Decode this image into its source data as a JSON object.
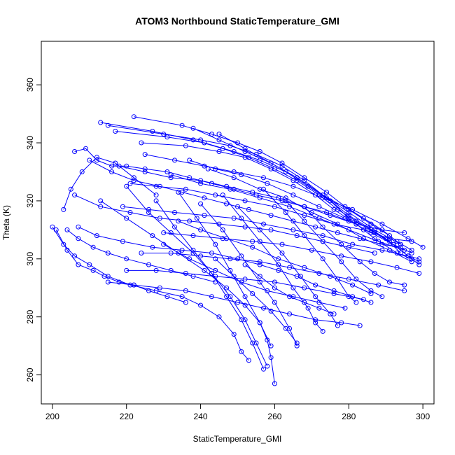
{
  "chart_data": {
    "type": "scatter",
    "mode": "lines+markers",
    "title": "ATOM3 Northbound StaticTemperature_GMI",
    "xlabel": "StaticTemperature_GMI",
    "ylabel": "Theta (K)",
    "xlim": [
      197,
      303
    ],
    "ylim": [
      250,
      375
    ],
    "xticks": [
      200,
      220,
      240,
      260,
      280,
      300
    ],
    "yticks": [
      260,
      280,
      300,
      320,
      340,
      360
    ],
    "grid": false,
    "color": "#0000ff",
    "series": [
      {
        "x": [
          222,
          235,
          243,
          250,
          256,
          262,
          268,
          274,
          279,
          284,
          289,
          293,
          297
        ],
        "y": [
          349,
          346,
          343,
          340,
          337,
          333,
          328,
          323,
          318,
          314,
          310,
          306,
          303
        ]
      },
      {
        "x": [
          213,
          227,
          238,
          246,
          253,
          260,
          266,
          272,
          277,
          282,
          287,
          292,
          296,
          299
        ],
        "y": [
          347,
          344,
          341,
          338,
          335,
          331,
          327,
          322,
          317,
          313,
          309,
          305,
          301,
          299
        ]
      },
      {
        "x": [
          215,
          230,
          240,
          248,
          255,
          262,
          268,
          274,
          280,
          285,
          290,
          294
        ],
        "y": [
          346,
          343,
          341,
          339,
          336,
          332,
          327,
          321,
          315,
          311,
          307,
          302
        ]
      },
      {
        "x": [
          217,
          231,
          241,
          249,
          256,
          263,
          269,
          275,
          280,
          286,
          291,
          296,
          299
        ],
        "y": [
          344,
          342,
          340,
          337,
          334,
          330,
          325,
          320,
          314,
          310,
          306,
          301,
          298
        ]
      },
      {
        "x": [
          224,
          236,
          245,
          252,
          259,
          265,
          271,
          276,
          282,
          287,
          293,
          297
        ],
        "y": [
          340,
          339,
          337,
          335,
          331,
          327,
          322,
          317,
          312,
          307,
          302,
          300
        ]
      },
      {
        "x": [
          201,
          204,
          207,
          211,
          214,
          218,
          222,
          226,
          231,
          236
        ],
        "y": [
          310,
          303,
          298,
          296,
          294,
          292,
          291,
          289,
          287,
          285
        ]
      },
      {
        "x": [
          200,
          203,
          206,
          210,
          215,
          221,
          228,
          235,
          240,
          245,
          249,
          251,
          253
        ],
        "y": [
          311,
          305,
          301,
          298,
          294,
          291,
          289,
          287,
          284,
          280,
          274,
          268,
          265
        ]
      },
      {
        "x": [
          207,
          212,
          219,
          227,
          235,
          243,
          250,
          256,
          261,
          266,
          271,
          276,
          281,
          286
        ],
        "y": [
          311,
          308,
          306,
          304,
          303,
          302,
          300,
          298,
          296,
          294,
          291,
          289,
          287,
          285
        ]
      },
      {
        "x": [
          206,
          213,
          221,
          229,
          237,
          245,
          252,
          259,
          266,
          273,
          280,
          287
        ],
        "y": [
          322,
          318,
          316,
          314,
          313,
          312,
          311,
          310,
          308,
          306,
          304,
          302
        ]
      },
      {
        "x": [
          206,
          209,
          212,
          216,
          220,
          225,
          231,
          237,
          243,
          249,
          255,
          262,
          268,
          274,
          280
        ],
        "y": [
          337,
          338,
          334,
          332,
          332,
          331,
          330,
          328,
          326,
          324,
          322,
          320,
          318,
          316,
          313
        ]
      },
      {
        "x": [
          218,
          225,
          232,
          240,
          247,
          254,
          261,
          268,
          275,
          282,
          289,
          295
        ],
        "y": [
          332,
          330,
          328,
          327,
          325,
          323,
          321,
          318,
          315,
          312,
          310,
          309
        ]
      },
      {
        "x": [
          221,
          228,
          236,
          244,
          252,
          260,
          268,
          276,
          284,
          291,
          297
        ],
        "y": [
          326,
          325,
          324,
          322,
          320,
          318,
          315,
          312,
          310,
          307,
          306
        ]
      },
      {
        "x": [
          219,
          226,
          233,
          241,
          249,
          257,
          265,
          273,
          281,
          289,
          296,
          299
        ],
        "y": [
          318,
          317,
          316,
          315,
          314,
          312,
          310,
          308,
          305,
          303,
          301,
          300
        ]
      },
      {
        "x": [
          230,
          238,
          246,
          254,
          262,
          270,
          278,
          286,
          293,
          299
        ],
        "y": [
          309,
          308,
          307,
          306,
          305,
          303,
          301,
          299,
          297,
          295
        ]
      },
      {
        "x": [
          224,
          232,
          240,
          248,
          256,
          264,
          272,
          280,
          288,
          295
        ],
        "y": [
          302,
          302,
          301,
          300,
          299,
          297,
          295,
          293,
          291,
          289
        ]
      },
      {
        "x": [
          220,
          228,
          236,
          244,
          252,
          260,
          268,
          276,
          284
        ],
        "y": [
          296,
          296,
          295,
          294,
          293,
          292,
          290,
          288,
          286
        ]
      },
      {
        "x": [
          215,
          222,
          229,
          236,
          243,
          250,
          257,
          264,
          271,
          278,
          283
        ],
        "y": [
          292,
          291,
          290,
          289,
          287,
          285,
          283,
          281,
          279,
          278,
          277
        ]
      },
      {
        "x": [
          213,
          220,
          227,
          234,
          241,
          247,
          252,
          256,
          258,
          259,
          260
        ],
        "y": [
          320,
          314,
          308,
          302,
          296,
          290,
          284,
          278,
          272,
          266,
          257
        ]
      },
      {
        "x": [
          220,
          226,
          232,
          238,
          243,
          248,
          252,
          255,
          258
        ],
        "y": [
          325,
          316,
          309,
          302,
          295,
          287,
          279,
          271,
          263
        ]
      },
      {
        "x": [
          228,
          233,
          238,
          243,
          247,
          251,
          254,
          257
        ],
        "y": [
          320,
          311,
          303,
          295,
          287,
          279,
          271,
          262
        ]
      },
      {
        "x": [
          234,
          239,
          244,
          248,
          252,
          256,
          259
        ],
        "y": [
          323,
          314,
          305,
          296,
          287,
          278,
          270
        ]
      },
      {
        "x": [
          240,
          246,
          251,
          256,
          260,
          264,
          266
        ],
        "y": [
          319,
          310,
          301,
          292,
          285,
          276,
          270
        ]
      },
      {
        "x": [
          246,
          251,
          256,
          261,
          265,
          269,
          271,
          273
        ],
        "y": [
          322,
          314,
          306,
          298,
          290,
          283,
          278,
          275
        ]
      },
      {
        "x": [
          250,
          256,
          262,
          267,
          271,
          275,
          277
        ],
        "y": [
          318,
          310,
          302,
          294,
          287,
          281,
          277
        ]
      },
      {
        "x": [
          257,
          263,
          268,
          273,
          277,
          280,
          282
        ],
        "y": [
          324,
          316,
          308,
          300,
          293,
          287,
          285
        ]
      },
      {
        "x": [
          263,
          268,
          273,
          278,
          282,
          286,
          289
        ],
        "y": [
          320,
          313,
          306,
          299,
          293,
          289,
          287
        ]
      },
      {
        "x": [
          268,
          273,
          278,
          283,
          287,
          291,
          295
        ],
        "y": [
          318,
          311,
          305,
          299,
          295,
          292,
          291
        ]
      },
      {
        "x": [
          203,
          205,
          208,
          212,
          217,
          222,
          228
        ],
        "y": [
          317,
          324,
          330,
          335,
          333,
          328,
          322
        ]
      },
      {
        "x": [
          210,
          216,
          222,
          229,
          235,
          241,
          247,
          253,
          259,
          265,
          271,
          277,
          283,
          289,
          294
        ],
        "y": [
          334,
          330,
          327,
          325,
          323,
          321,
          319,
          317,
          315,
          313,
          311,
          309,
          307,
          305,
          304
        ]
      },
      {
        "x": [
          225,
          233,
          241,
          249,
          257,
          265,
          273,
          281,
          289,
          296,
          300
        ],
        "y": [
          336,
          334,
          332,
          330,
          328,
          325,
          321,
          317,
          312,
          307,
          304
        ]
      },
      {
        "x": [
          232,
          240,
          248,
          256,
          264,
          272,
          280,
          288,
          295
        ],
        "y": [
          329,
          326,
          324,
          321,
          318,
          314,
          310,
          306,
          303
        ]
      },
      {
        "x": [
          237,
          244,
          251,
          258,
          265,
          272,
          279,
          286,
          292,
          297
        ],
        "y": [
          334,
          331,
          329,
          326,
          322,
          318,
          314,
          309,
          305,
          302
        ]
      },
      {
        "x": [
          242,
          249,
          256,
          263,
          270,
          277,
          284,
          291,
          297
        ],
        "y": [
          331,
          328,
          324,
          321,
          316,
          312,
          307,
          303,
          299
        ]
      },
      {
        "x": [
          245,
          252,
          259,
          266,
          273,
          280,
          287,
          294
        ],
        "y": [
          343,
          338,
          333,
          328,
          322,
          316,
          310,
          305
        ]
      },
      {
        "x": [
          238,
          245,
          252,
          259,
          266,
          273,
          280,
          286,
          291
        ],
        "y": [
          345,
          341,
          337,
          333,
          328,
          322,
          317,
          312,
          308
        ]
      },
      {
        "x": [
          234,
          240,
          247,
          254,
          261,
          268,
          275,
          281,
          286
        ],
        "y": [
          313,
          310,
          307,
          304,
          300,
          297,
          294,
          291,
          288
        ]
      },
      {
        "x": [
          230,
          237,
          244,
          251,
          258,
          265,
          272,
          279
        ],
        "y": [
          305,
          300,
          296,
          292,
          289,
          287,
          285,
          283
        ]
      },
      {
        "x": [
          244,
          249,
          254,
          259,
          263,
          266
        ],
        "y": [
          300,
          294,
          288,
          282,
          276,
          271
        ]
      },
      {
        "x": [
          252,
          256,
          260,
          264,
          268,
          272,
          276
        ],
        "y": [
          298,
          294,
          290,
          287,
          285,
          283,
          281
        ]
      },
      {
        "x": [
          204,
          207,
          211,
          215,
          220,
          226,
          232,
          238,
          244
        ],
        "y": [
          310,
          307,
          304,
          302,
          300,
          298,
          296,
          294,
          292
        ]
      }
    ]
  }
}
